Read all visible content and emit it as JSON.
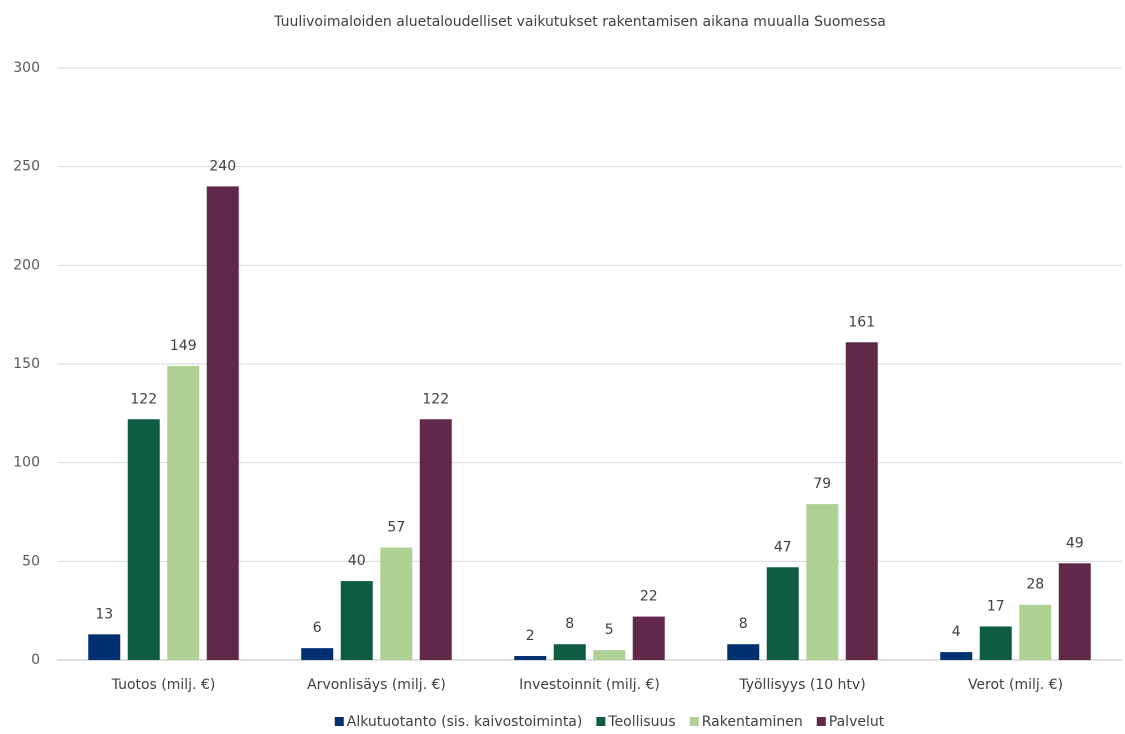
{
  "chart_data": {
    "type": "bar",
    "title": "Tuulivoimaloiden aluetaloudelliset vaikutukset rakentamisen aikana muualla Suomessa",
    "categories": [
      "Tuotos (milj. €)",
      "Arvonlisäys (milj. €)",
      "Investoinnit (milj. €)",
      "Työllisyys (10 htv)",
      "Verot (milj. €)"
    ],
    "series": [
      {
        "name": "Alkutuotanto (sis. kaivostoiminta)",
        "color": "#003070",
        "values": [
          13,
          6,
          2,
          8,
          4
        ]
      },
      {
        "name": "Teollisuus",
        "color": "#0f5c44",
        "values": [
          122,
          40,
          8,
          47,
          17
        ]
      },
      {
        "name": "Rakentaminen",
        "color": "#b0d194",
        "values": [
          149,
          57,
          5,
          79,
          28
        ]
      },
      {
        "name": "Palvelut",
        "color": "#612849",
        "values": [
          240,
          122,
          22,
          161,
          49
        ]
      }
    ],
    "ylim": [
      0,
      300
    ],
    "yticks": [
      0,
      50,
      100,
      150,
      200,
      250,
      300
    ],
    "grid": true,
    "legend": "bottom"
  }
}
